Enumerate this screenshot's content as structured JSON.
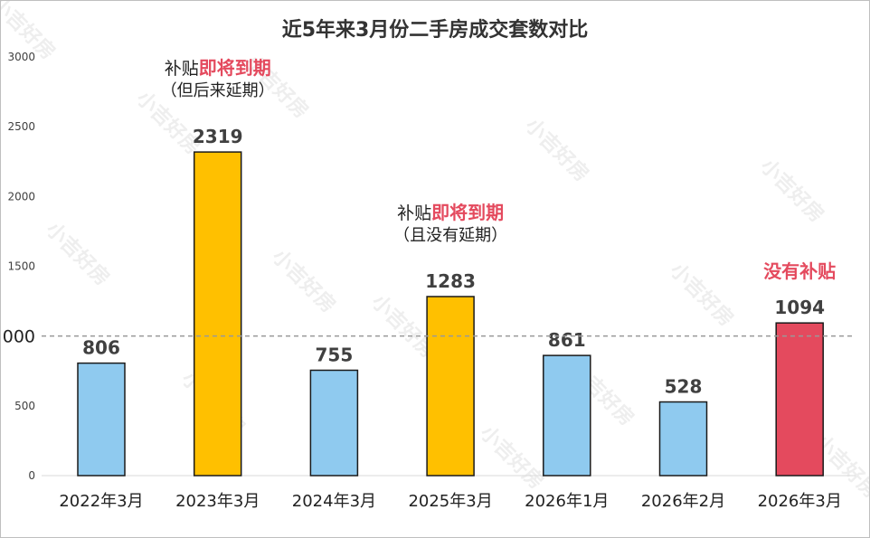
{
  "chart_data": {
    "type": "bar",
    "title": "近5年来3月份二手房成交套数对比",
    "categories": [
      "2022年3月",
      "2023年3月",
      "2024年3月",
      "2025年3月",
      "2026年1月",
      "2026年2月",
      "2026年3月"
    ],
    "values": [
      806,
      2319,
      755,
      1283,
      861,
      528,
      1094
    ],
    "bar_colors": [
      "#8fcaef",
      "#ffc000",
      "#8fcaef",
      "#ffc000",
      "#8fcaef",
      "#8fcaef",
      "#e44a5e"
    ],
    "ylim": [
      0,
      3000
    ],
    "yticks": [
      0,
      500,
      1000,
      1500,
      2000,
      2500,
      3000
    ],
    "reference_line": {
      "value": 1000,
      "label": "1000",
      "style": "dashed",
      "color": "#999999"
    },
    "grid": false,
    "annotations": [
      {
        "category": "2023年3月",
        "plain": "补贴",
        "highlight": "即将到期",
        "sub": "（但后来延期）"
      },
      {
        "category": "2025年3月",
        "plain": "补贴",
        "highlight": "即将到期",
        "sub": "（且没有延期）"
      },
      {
        "category": "2026年3月",
        "plain": "",
        "highlight": "没有补贴",
        "sub": ""
      }
    ],
    "watermark": "小吉好房"
  }
}
